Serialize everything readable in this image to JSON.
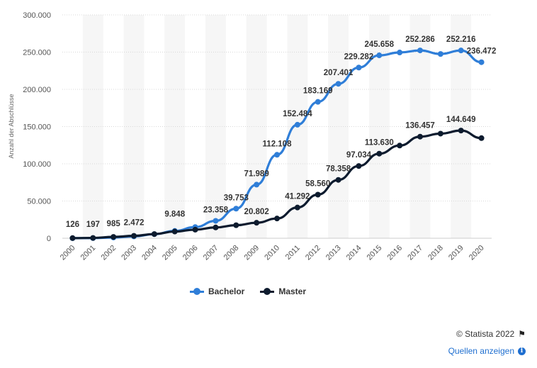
{
  "chart_data": {
    "type": "line",
    "title": "",
    "xlabel": "",
    "ylabel": "Anzahl der Abschlüsse",
    "ylim": [
      0,
      300000
    ],
    "yticks": [
      0,
      50000,
      100000,
      150000,
      200000,
      250000,
      300000
    ],
    "ytick_labels": [
      "0",
      "50.000",
      "100.000",
      "150.000",
      "200.000",
      "250.000",
      "300.000"
    ],
    "categories": [
      "2000",
      "2001",
      "2002",
      "2003",
      "2004",
      "2005",
      "2006",
      "2007",
      "2008",
      "2009",
      "2010",
      "2011",
      "2012",
      "2013",
      "2014",
      "2015",
      "2016",
      "2017",
      "2018",
      "2019",
      "2020"
    ],
    "series": [
      {
        "name": "Bachelor",
        "color": "#2f7ed8",
        "values": [
          126,
          197,
          985,
          2472,
          5500,
          9848,
          15000,
          23358,
          39753,
          71989,
          112108,
          152484,
          183169,
          207401,
          229282,
          245658,
          249500,
          252286,
          247500,
          252216,
          236472
        ],
        "labels": [
          "126",
          "197",
          "985",
          "2.472",
          "",
          "9.848",
          "",
          "23.358",
          "39.753",
          "71.989",
          "112.108",
          "152.484",
          "183.169",
          "207.401",
          "229.282",
          "245.658",
          "",
          "252.286",
          "",
          "252.216",
          "236.472"
        ]
      },
      {
        "name": "Master",
        "color": "#0d1b2e",
        "values": [
          200,
          400,
          1800,
          3200,
          5600,
          9000,
          11500,
          14500,
          17500,
          20802,
          26500,
          41292,
          58560,
          78358,
          97034,
          113630,
          124500,
          136457,
          140500,
          144649,
          134500
        ],
        "labels": [
          "",
          "",
          "",
          "",
          "",
          "",
          "",
          "",
          "",
          "20.802",
          "",
          "41.292",
          "58.560",
          "78.358",
          "97.034",
          "113.630",
          "",
          "136.457",
          "",
          "144.649",
          ""
        ]
      }
    ],
    "grid": true,
    "legend": "bottom-center"
  },
  "footer": {
    "copyright": "© Statista 2022",
    "sources_link": "Quellen anzeigen"
  }
}
